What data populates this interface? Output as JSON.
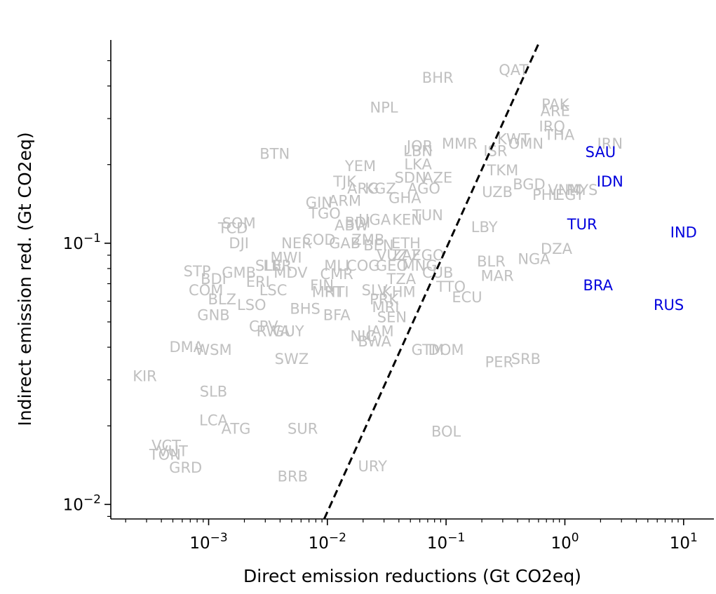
{
  "chart_data": {
    "type": "scatter",
    "title": "",
    "xlabel": "Direct emission reductions (Gt CO2eq)",
    "ylabel": "Indirect emission red. (Gt CO2eq)",
    "xscale": "log",
    "yscale": "log",
    "xlim": [
      0.00015,
      18
    ],
    "ylim": [
      0.0088,
      0.6
    ],
    "grid": false,
    "legend": "none",
    "x_tick_labels": [
      {
        "value": 0.001,
        "base": "10",
        "exp": "−3"
      },
      {
        "value": 0.01,
        "base": "10",
        "exp": "−2"
      },
      {
        "value": 0.1,
        "base": "10",
        "exp": "−1"
      },
      {
        "value": 1,
        "base": "10",
        "exp": "0"
      },
      {
        "value": 10,
        "base": "10",
        "exp": "1"
      }
    ],
    "y_tick_labels": [
      {
        "value": 0.01,
        "base": "10",
        "exp": "−2"
      },
      {
        "value": 0.1,
        "base": "10",
        "exp": "−1"
      }
    ],
    "reference_line": {
      "style": "dashed",
      "color": "#000000",
      "points": [
        [
          0.0094,
          0.0088
        ],
        [
          0.6,
          0.58
        ]
      ]
    },
    "colors": {
      "default": "#c0c0c0",
      "highlight": "#0000dd"
    },
    "points": [
      {
        "label": "QAT",
        "x": 0.37,
        "y": 0.46
      },
      {
        "label": "BHR",
        "x": 0.085,
        "y": 0.43
      },
      {
        "label": "NPL",
        "x": 0.03,
        "y": 0.33
      },
      {
        "label": "PAK",
        "x": 0.83,
        "y": 0.34
      },
      {
        "label": "ARE",
        "x": 0.83,
        "y": 0.32
      },
      {
        "label": "IRQ",
        "x": 0.78,
        "y": 0.28
      },
      {
        "label": "THA",
        "x": 0.9,
        "y": 0.26
      },
      {
        "label": "KWT",
        "x": 0.37,
        "y": 0.25
      },
      {
        "label": "OMN",
        "x": 0.47,
        "y": 0.24
      },
      {
        "label": "MMR",
        "x": 0.13,
        "y": 0.24
      },
      {
        "label": "ISR",
        "x": 0.26,
        "y": 0.225
      },
      {
        "label": "JOR",
        "x": 0.06,
        "y": 0.235
      },
      {
        "label": "LBN",
        "x": 0.058,
        "y": 0.225
      },
      {
        "label": "IRN",
        "x": 2.4,
        "y": 0.24
      },
      {
        "label": "SAU",
        "x": 2.0,
        "y": 0.223,
        "highlight": true
      },
      {
        "label": "BTN",
        "x": 0.0036,
        "y": 0.22
      },
      {
        "label": "YEM",
        "x": 0.019,
        "y": 0.197
      },
      {
        "label": "LKA",
        "x": 0.058,
        "y": 0.2
      },
      {
        "label": "TKM",
        "x": 0.3,
        "y": 0.19
      },
      {
        "label": "IDN",
        "x": 2.4,
        "y": 0.172,
        "highlight": true
      },
      {
        "label": "SDN",
        "x": 0.05,
        "y": 0.178
      },
      {
        "label": "AZE",
        "x": 0.085,
        "y": 0.178
      },
      {
        "label": "BGD",
        "x": 0.5,
        "y": 0.168
      },
      {
        "label": "TJK",
        "x": 0.014,
        "y": 0.172
      },
      {
        "label": "ARG",
        "x": 0.02,
        "y": 0.162
      },
      {
        "label": "KGZ",
        "x": 0.028,
        "y": 0.162
      },
      {
        "label": "MYS",
        "x": 1.4,
        "y": 0.16
      },
      {
        "label": "VNM",
        "x": 1.0,
        "y": 0.16
      },
      {
        "label": "EGY",
        "x": 1.1,
        "y": 0.153
      },
      {
        "label": "PHL",
        "x": 0.7,
        "y": 0.153
      },
      {
        "label": "UZB",
        "x": 0.27,
        "y": 0.157
      },
      {
        "label": "AGO",
        "x": 0.065,
        "y": 0.162
      },
      {
        "label": "GHA",
        "x": 0.045,
        "y": 0.149
      },
      {
        "label": "GIN",
        "x": 0.0085,
        "y": 0.143
      },
      {
        "label": "ARM",
        "x": 0.014,
        "y": 0.145
      },
      {
        "label": "TUN",
        "x": 0.07,
        "y": 0.128
      },
      {
        "label": "TGO",
        "x": 0.0095,
        "y": 0.13
      },
      {
        "label": "KEN",
        "x": 0.047,
        "y": 0.123
      },
      {
        "label": "UGA",
        "x": 0.025,
        "y": 0.123
      },
      {
        "label": "BDI",
        "x": 0.018,
        "y": 0.12
      },
      {
        "label": "ABW",
        "x": 0.016,
        "y": 0.117
      },
      {
        "label": "LBY",
        "x": 0.21,
        "y": 0.115
      },
      {
        "label": "TUR",
        "x": 1.4,
        "y": 0.118,
        "highlight": true
      },
      {
        "label": "SOM",
        "x": 0.0018,
        "y": 0.119
      },
      {
        "label": "TCD",
        "x": 0.0016,
        "y": 0.114
      },
      {
        "label": "IND",
        "x": 10.0,
        "y": 0.11,
        "highlight": true
      },
      {
        "label": "DJI",
        "x": 0.0018,
        "y": 0.1
      },
      {
        "label": "COD",
        "x": 0.0085,
        "y": 0.103
      },
      {
        "label": "NER",
        "x": 0.0055,
        "y": 0.1
      },
      {
        "label": "GAB",
        "x": 0.014,
        "y": 0.1
      },
      {
        "label": "ZMB",
        "x": 0.022,
        "y": 0.103
      },
      {
        "label": "BEN",
        "x": 0.027,
        "y": 0.098
      },
      {
        "label": "ETH",
        "x": 0.046,
        "y": 0.1
      },
      {
        "label": "DZA",
        "x": 0.85,
        "y": 0.095
      },
      {
        "label": "NGA",
        "x": 0.55,
        "y": 0.087
      },
      {
        "label": "BLR",
        "x": 0.24,
        "y": 0.085
      },
      {
        "label": "ZAF",
        "x": 0.046,
        "y": 0.09
      },
      {
        "label": "VUZ",
        "x": 0.035,
        "y": 0.09
      },
      {
        "label": "ZGO",
        "x": 0.07,
        "y": 0.09
      },
      {
        "label": "MWI",
        "x": 0.0045,
        "y": 0.088
      },
      {
        "label": "SLE",
        "x": 0.0032,
        "y": 0.082
      },
      {
        "label": "LBR",
        "x": 0.0038,
        "y": 0.082
      },
      {
        "label": "MLI",
        "x": 0.012,
        "y": 0.082
      },
      {
        "label": "COG",
        "x": 0.02,
        "y": 0.082
      },
      {
        "label": "GEO",
        "x": 0.035,
        "y": 0.082
      },
      {
        "label": "MNG",
        "x": 0.06,
        "y": 0.082
      },
      {
        "label": "STP",
        "x": 0.0008,
        "y": 0.078
      },
      {
        "label": "GMB",
        "x": 0.0018,
        "y": 0.077
      },
      {
        "label": "MDV",
        "x": 0.0049,
        "y": 0.077
      },
      {
        "label": "CMR",
        "x": 0.012,
        "y": 0.076
      },
      {
        "label": "MAR",
        "x": 0.27,
        "y": 0.075
      },
      {
        "label": "CUB",
        "x": 0.085,
        "y": 0.077
      },
      {
        "label": "TZA",
        "x": 0.042,
        "y": 0.073
      },
      {
        "label": "BDI",
        "x": 0.0011,
        "y": 0.073
      },
      {
        "label": "ERI",
        "x": 0.0026,
        "y": 0.071
      },
      {
        "label": "FIN",
        "x": 0.009,
        "y": 0.069
      },
      {
        "label": "BRA",
        "x": 1.9,
        "y": 0.069,
        "highlight": true
      },
      {
        "label": "TTO",
        "x": 0.11,
        "y": 0.068
      },
      {
        "label": "COM",
        "x": 0.00095,
        "y": 0.066
      },
      {
        "label": "LSC",
        "x": 0.0035,
        "y": 0.066
      },
      {
        "label": "SLV",
        "x": 0.025,
        "y": 0.066
      },
      {
        "label": "MRT",
        "x": 0.01,
        "y": 0.065
      },
      {
        "label": "HTI",
        "x": 0.012,
        "y": 0.065
      },
      {
        "label": "KHM",
        "x": 0.04,
        "y": 0.065
      },
      {
        "label": "BLZ",
        "x": 0.0013,
        "y": 0.061
      },
      {
        "label": "ECU",
        "x": 0.15,
        "y": 0.062
      },
      {
        "label": "PRK",
        "x": 0.03,
        "y": 0.061
      },
      {
        "label": "RUS",
        "x": 7.5,
        "y": 0.058,
        "highlight": true
      },
      {
        "label": "LSO",
        "x": 0.0023,
        "y": 0.058
      },
      {
        "label": "BHS",
        "x": 0.0065,
        "y": 0.056
      },
      {
        "label": "MRI",
        "x": 0.031,
        "y": 0.057
      },
      {
        "label": "GNB",
        "x": 0.0011,
        "y": 0.053
      },
      {
        "label": "BFA",
        "x": 0.012,
        "y": 0.053
      },
      {
        "label": "SEN",
        "x": 0.035,
        "y": 0.052
      },
      {
        "label": "CPV",
        "x": 0.0029,
        "y": 0.048
      },
      {
        "label": "RWA",
        "x": 0.0035,
        "y": 0.046
      },
      {
        "label": "GUY",
        "x": 0.0047,
        "y": 0.046
      },
      {
        "label": "JAM",
        "x": 0.028,
        "y": 0.046
      },
      {
        "label": "NIC",
        "x": 0.02,
        "y": 0.044
      },
      {
        "label": "BWA",
        "x": 0.025,
        "y": 0.042
      },
      {
        "label": "DMA",
        "x": 0.00065,
        "y": 0.04
      },
      {
        "label": "WSM",
        "x": 0.0011,
        "y": 0.039
      },
      {
        "label": "GTM",
        "x": 0.07,
        "y": 0.039
      },
      {
        "label": "DOM",
        "x": 0.1,
        "y": 0.039
      },
      {
        "label": "SWZ",
        "x": 0.005,
        "y": 0.036
      },
      {
        "label": "SRB",
        "x": 0.47,
        "y": 0.036
      },
      {
        "label": "PER",
        "x": 0.28,
        "y": 0.035
      },
      {
        "label": "KIR",
        "x": 0.00029,
        "y": 0.031
      },
      {
        "label": "SLB",
        "x": 0.0011,
        "y": 0.027
      },
      {
        "label": "LCA",
        "x": 0.0011,
        "y": 0.021
      },
      {
        "label": "ATG",
        "x": 0.0017,
        "y": 0.0195
      },
      {
        "label": "SUR",
        "x": 0.0062,
        "y": 0.0195
      },
      {
        "label": "BOL",
        "x": 0.1,
        "y": 0.019
      },
      {
        "label": "VCT",
        "x": 0.00044,
        "y": 0.0168
      },
      {
        "label": "VUT",
        "x": 0.0005,
        "y": 0.016
      },
      {
        "label": "TON",
        "x": 0.00043,
        "y": 0.0155
      },
      {
        "label": "GRD",
        "x": 0.00064,
        "y": 0.0138
      },
      {
        "label": "URY",
        "x": 0.024,
        "y": 0.014
      },
      {
        "label": "BRB",
        "x": 0.0051,
        "y": 0.0128
      }
    ]
  }
}
